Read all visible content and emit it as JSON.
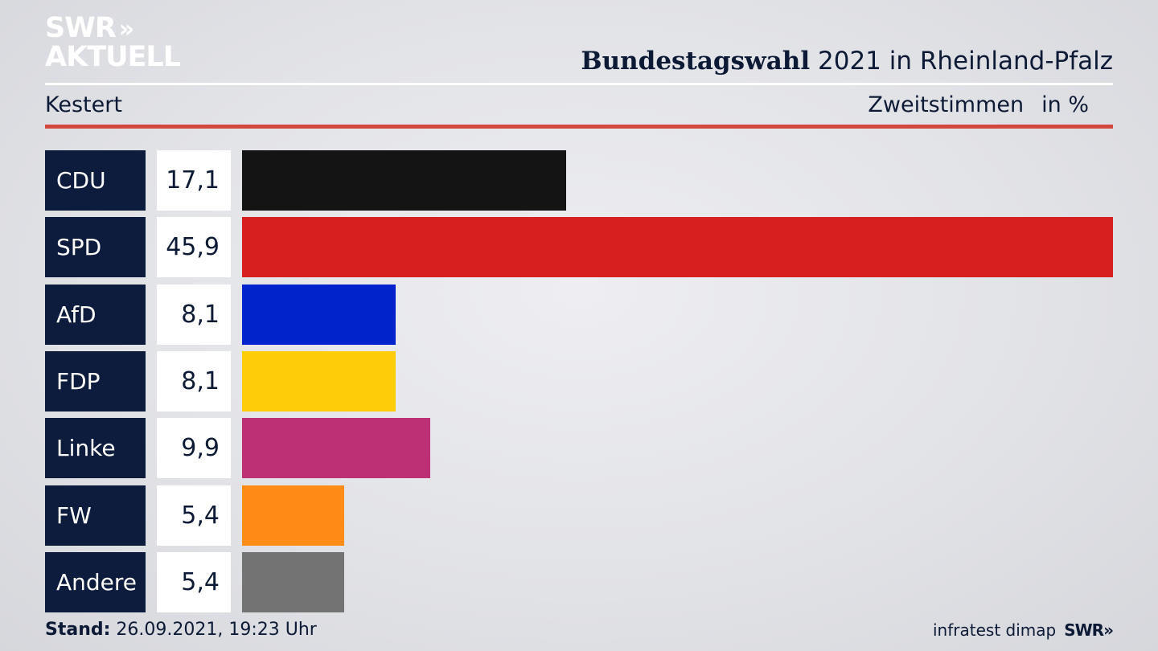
{
  "header": {
    "logo_line1": "SWR",
    "logo_arrows": "»",
    "logo_line2": "AKTUELL",
    "title_bold": "Bundestagswahl",
    "title_rest": "2021 in Rheinland-Pfalz",
    "location": "Kestert",
    "measure": "Zweitstimmen",
    "unit": "in %"
  },
  "chart_data": {
    "type": "bar",
    "orientation": "horizontal",
    "title": "Bundestagswahl 2021 in Rheinland-Pfalz",
    "subtitle": "Kestert",
    "xlabel": "Zweitstimmen in %",
    "xlim": [
      0,
      45.9
    ],
    "categories": [
      "CDU",
      "SPD",
      "AfD",
      "FDP",
      "Linke",
      "FW",
      "Andere"
    ],
    "values": [
      17.1,
      45.9,
      8.1,
      8.1,
      9.9,
      5.4,
      5.4
    ],
    "value_labels": [
      "17,1",
      "45,9",
      "8,1",
      "8,1",
      "9,9",
      "5,4",
      "5,4"
    ],
    "colors": [
      "#141414",
      "#d71f1f",
      "#0024cc",
      "#fecd09",
      "#bd3075",
      "#ff8c17",
      "#737373"
    ]
  },
  "footer": {
    "stand_label": "Stand:",
    "stand_value": "26.09.2021, 19:23 Uhr",
    "source": "infratest dimap",
    "brand": "SWR»"
  }
}
